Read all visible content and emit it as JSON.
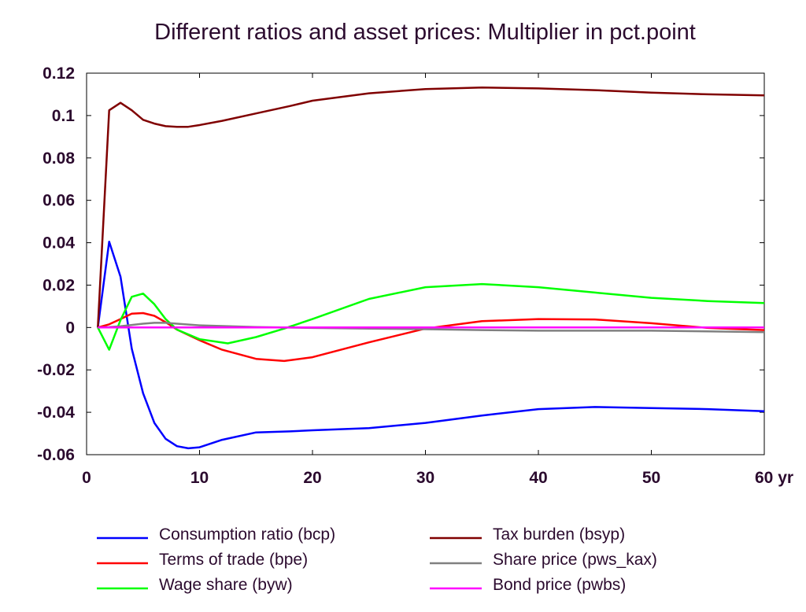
{
  "chart_data": {
    "type": "line",
    "title": "Different ratios and asset prices: Multiplier in pct.point",
    "xlabel": "",
    "ylabel": "",
    "xlim": [
      0,
      60
    ],
    "ylim": [
      -0.06,
      0.12
    ],
    "x_ticks": [
      "0",
      "10",
      "20",
      "30",
      "40",
      "50",
      "60 yr"
    ],
    "y_ticks": [
      "0.12",
      "0.1",
      "0.08",
      "0.06",
      "0.04",
      "0.02",
      "0",
      "-0.02",
      "-0.04",
      "-0.06"
    ],
    "grid": false,
    "legend_position": "bottom",
    "series": [
      {
        "name": "Consumption ratio (bcp)",
        "color": "#0000ff",
        "x": [
          1,
          2,
          3,
          4,
          5,
          6,
          7,
          8,
          9,
          10,
          12,
          15,
          18,
          20,
          25,
          30,
          35,
          40,
          45,
          50,
          55,
          60
        ],
        "y": [
          0,
          0.0405,
          0.024,
          -0.01,
          -0.031,
          -0.045,
          -0.0525,
          -0.056,
          -0.057,
          -0.0565,
          -0.053,
          -0.0495,
          -0.049,
          -0.0485,
          -0.0475,
          -0.045,
          -0.0415,
          -0.0385,
          -0.0375,
          -0.038,
          -0.0385,
          -0.0395
        ]
      },
      {
        "name": "Terms of trade (bpe)",
        "color": "#ff0000",
        "x": [
          1,
          2,
          3,
          4,
          5,
          6,
          7,
          8,
          10,
          12,
          15,
          17.5,
          20,
          25,
          30,
          35,
          40,
          45,
          50,
          55,
          60
        ],
        "y": [
          0,
          0.0015,
          0.004,
          0.0065,
          0.0068,
          0.0055,
          0.0025,
          -0.001,
          -0.006,
          -0.0105,
          -0.0148,
          -0.0158,
          -0.014,
          -0.007,
          -0.0005,
          0.003,
          0.004,
          0.0038,
          0.002,
          -0.0002,
          -0.0012
        ]
      },
      {
        "name": "Wage share (byw)",
        "color": "#00ff00",
        "x": [
          1,
          2,
          3,
          4,
          5,
          6,
          7,
          8,
          10,
          12.5,
          15,
          17.5,
          20,
          25,
          30,
          35,
          40,
          45,
          50,
          55,
          60
        ],
        "y": [
          0,
          -0.0105,
          0.0035,
          0.0145,
          0.016,
          0.011,
          0.004,
          -0.001,
          -0.0055,
          -0.0075,
          -0.0045,
          -0.0005,
          0.004,
          0.0135,
          0.019,
          0.0205,
          0.019,
          0.0165,
          0.014,
          0.0125,
          0.0115
        ]
      },
      {
        "name": "Tax burden (bsyp)",
        "color": "#800000",
        "x": [
          1,
          2,
          3,
          4,
          5,
          6,
          7,
          8,
          9,
          10,
          12,
          15,
          18,
          20,
          25,
          30,
          35,
          40,
          45,
          50,
          55,
          60
        ],
        "y": [
          0,
          0.1025,
          0.106,
          0.1025,
          0.098,
          0.0962,
          0.095,
          0.0947,
          0.0947,
          0.0955,
          0.0975,
          0.101,
          0.1045,
          0.107,
          0.1105,
          0.1125,
          0.1132,
          0.1128,
          0.112,
          0.1108,
          0.11,
          0.1095
        ]
      },
      {
        "name": "Share price (pws_kax)",
        "color": "#808080",
        "x": [
          1,
          2,
          3,
          4,
          5,
          6,
          7,
          8,
          10,
          15,
          20,
          25,
          30,
          35,
          40,
          45,
          50,
          55,
          60
        ],
        "y": [
          0,
          0.0002,
          0.0006,
          0.0012,
          0.0018,
          0.0022,
          0.0022,
          0.0018,
          0.001,
          0.0002,
          -0.0002,
          -0.0005,
          -0.0008,
          -0.0012,
          -0.0015,
          -0.0015,
          -0.0015,
          -0.0018,
          -0.0022
        ]
      },
      {
        "name": "Bond price (pwbs)",
        "color": "#ff00ff",
        "x": [
          1,
          60
        ],
        "y": [
          0,
          0
        ]
      }
    ]
  }
}
